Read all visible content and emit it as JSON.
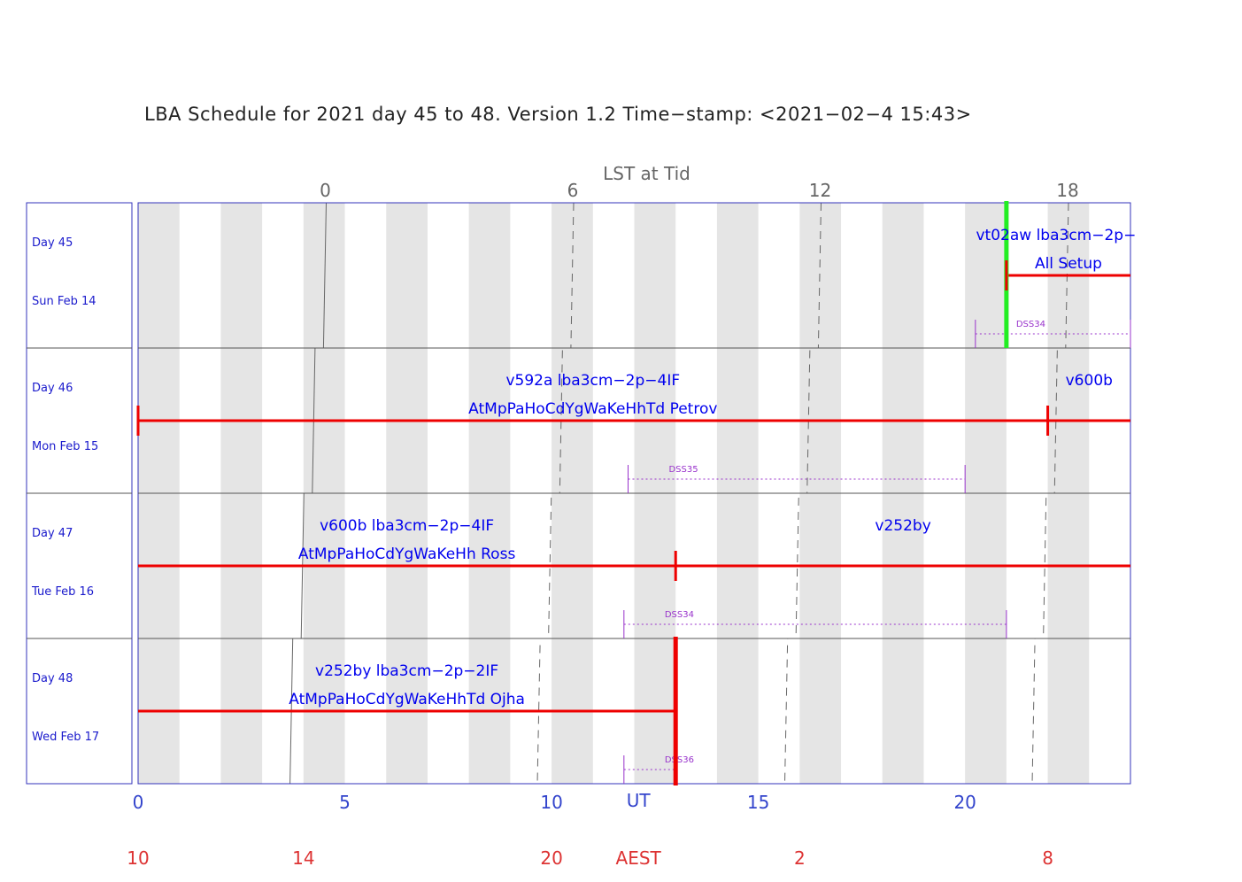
{
  "title": "LBA Schedule for 2021 day 45 to 48. Version 1.2 Time−stamp: <2021−02−4 15:43>",
  "colors": {
    "frame": "#3333bb",
    "band": "#e5e5e5",
    "observation": "#ee0000",
    "setup": "#22ee22",
    "dss": "#9933cc",
    "label": "#0000ee",
    "ut_axis": "#3344cc",
    "aest_axis": "#dd3333",
    "lst_axis": "#666666"
  },
  "axes": {
    "lst": {
      "label": "LST at Tid",
      "ticks": [
        {
          "label": "0",
          "hour": 0
        },
        {
          "label": "6",
          "hour": 6
        },
        {
          "label": "12",
          "hour": 12
        },
        {
          "label": "18",
          "hour": 18
        }
      ]
    },
    "ut": {
      "label": "UT",
      "label_hour": 12.1,
      "range": [
        0,
        24
      ],
      "ticks": [
        {
          "label": "0",
          "value": 0
        },
        {
          "label": "5",
          "value": 5
        },
        {
          "label": "10",
          "value": 10
        },
        {
          "label": "15",
          "value": 15
        },
        {
          "label": "20",
          "value": 20
        }
      ]
    },
    "aest": {
      "label": "AEST",
      "label_hour": 12.1,
      "ticks": [
        {
          "label": "10",
          "ut": 0
        },
        {
          "label": "14",
          "ut": 4
        },
        {
          "label": "20",
          "ut": 10
        },
        {
          "label": "2",
          "ut": 16
        },
        {
          "label": "8",
          "ut": 22
        }
      ]
    }
  },
  "chart_data": {
    "type": "table",
    "x_unit": "UT hours",
    "xlim": [
      0,
      24
    ],
    "lst_zero_ut": [
      4.55,
      4.28,
      4.01,
      3.74
    ],
    "days": [
      {
        "day": "Day 45",
        "date": "Sun Feb 14",
        "bars": [
          {
            "start": 21.0,
            "end": 24.0,
            "start_tick": true,
            "end_tick": false
          }
        ],
        "setup_markers": [
          21.0
        ],
        "labels": [
          {
            "text": "vt02aw lba3cm−2p−",
            "x": 22.2,
            "line": 1
          },
          {
            "text": "All Setup",
            "x": 22.5,
            "line": 2
          }
        ],
        "dss": [
          {
            "name": "DSS34",
            "start": 20.25,
            "end": 24.0
          }
        ]
      },
      {
        "day": "Day 46",
        "date": "Mon Feb 15",
        "bars": [
          {
            "start": 0.0,
            "end": 22.0,
            "start_tick": true,
            "end_tick": true
          },
          {
            "start": 22.0,
            "end": 24.0,
            "start_tick": false,
            "end_tick": false
          }
        ],
        "setup_markers": [],
        "labels": [
          {
            "text": "v592a lba3cm−2p−4IF",
            "x": 11.0,
            "line": 1
          },
          {
            "text": "AtMpPaHoCdYgWaKeHhTd Petrov",
            "x": 11.0,
            "line": 2
          },
          {
            "text": "v600b",
            "x": 23.0,
            "line": 1
          }
        ],
        "dss": [
          {
            "name": "DSS35",
            "start": 11.85,
            "end": 20.0
          }
        ]
      },
      {
        "day": "Day 47",
        "date": "Tue Feb 16",
        "bars": [
          {
            "start": 0.0,
            "end": 13.0,
            "start_tick": false,
            "end_tick": true
          },
          {
            "start": 13.0,
            "end": 24.0,
            "start_tick": false,
            "end_tick": false
          }
        ],
        "setup_markers": [],
        "labels": [
          {
            "text": "v600b lba3cm−2p−4IF",
            "x": 6.5,
            "line": 1
          },
          {
            "text": "AtMpPaHoCdYgWaKeHh Ross",
            "x": 6.5,
            "line": 2
          },
          {
            "text": "v252by",
            "x": 18.5,
            "line": 1
          }
        ],
        "dss": [
          {
            "name": "DSS34",
            "start": 11.75,
            "end": 21.0
          }
        ]
      },
      {
        "day": "Day 48",
        "date": "Wed Feb 17",
        "bars": [
          {
            "start": 0.0,
            "end": 13.0,
            "start_tick": false,
            "end_tick": false
          }
        ],
        "end_markers": [
          13.0
        ],
        "setup_markers": [],
        "labels": [
          {
            "text": "v252by lba3cm−2p−2IF",
            "x": 6.5,
            "line": 1
          },
          {
            "text": "AtMpPaHoCdYgWaKeHhTd Ojha",
            "x": 6.5,
            "line": 2
          }
        ],
        "dss": [
          {
            "name": "DSS36",
            "start": 11.75,
            "end": 13.0
          }
        ]
      }
    ]
  }
}
